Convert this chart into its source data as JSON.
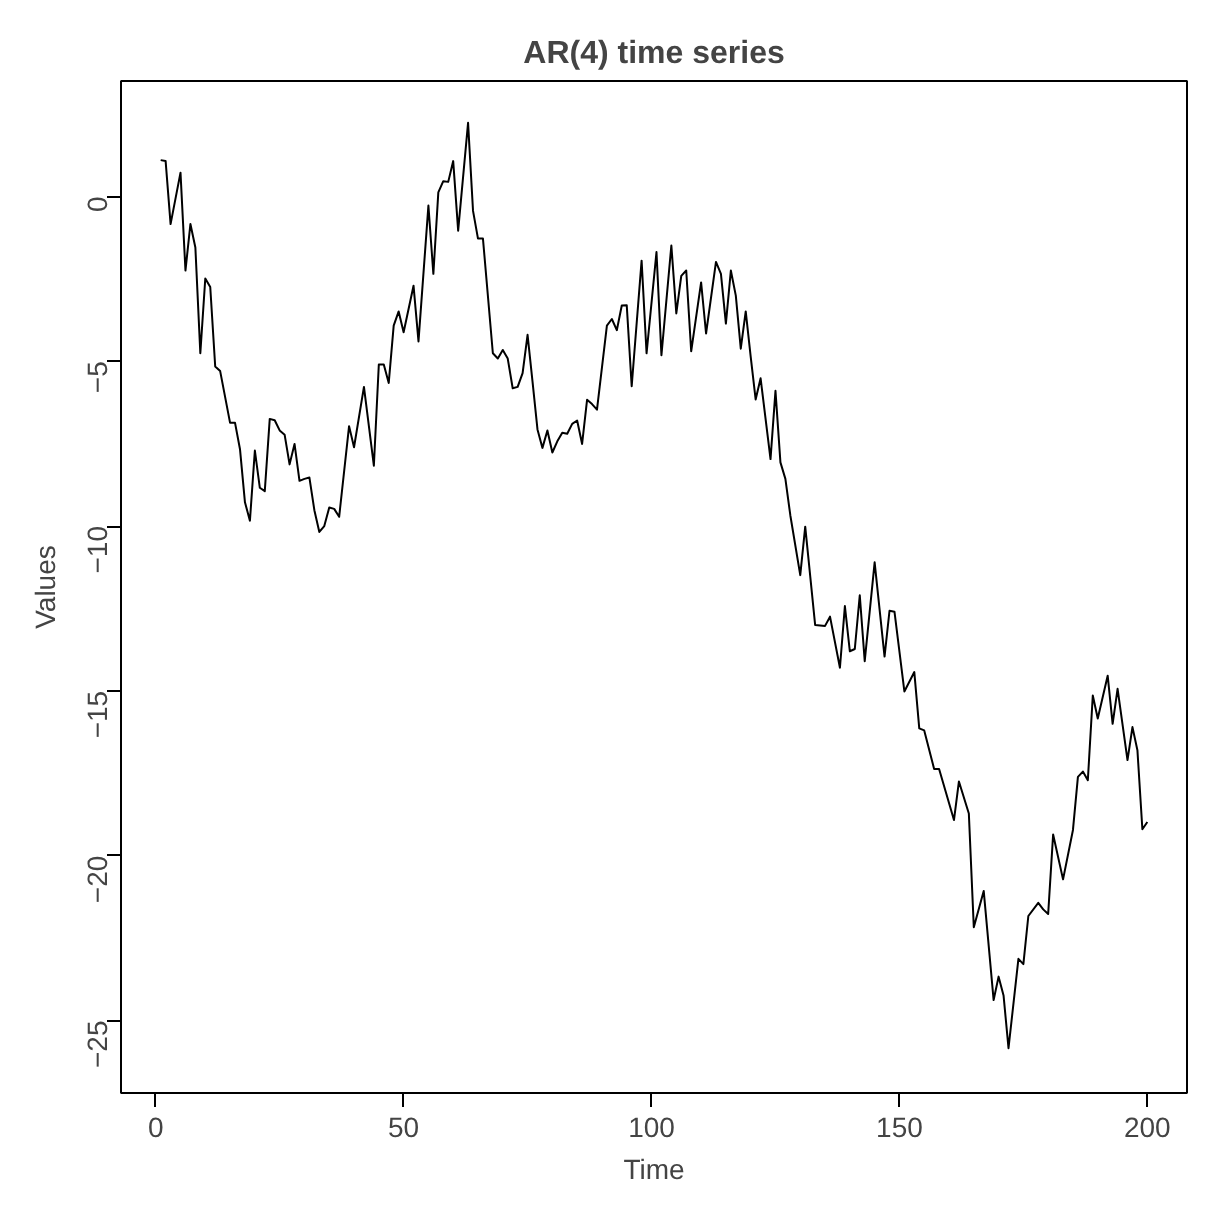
{
  "chart_data": {
    "type": "line",
    "title": "AR(4) time series",
    "xlabel": "Time",
    "ylabel": "Values",
    "x": [
      1,
      2,
      3,
      5,
      6,
      7,
      8,
      9,
      10,
      11,
      12,
      13,
      15,
      16,
      17,
      18,
      19,
      20,
      21,
      22,
      23,
      24,
      25,
      26,
      27,
      28,
      29,
      30,
      31,
      32,
      33,
      34,
      35,
      36,
      37,
      39,
      40,
      42,
      44,
      45,
      46,
      47,
      48,
      49,
      50,
      52,
      53,
      55,
      56,
      57,
      58,
      59,
      60,
      61,
      63,
      64,
      65,
      66,
      68,
      69,
      70,
      71,
      72,
      73,
      74,
      75,
      76,
      77,
      78,
      79,
      80,
      81,
      82,
      83,
      84,
      85,
      86,
      87,
      88,
      89,
      91,
      92,
      93,
      94,
      95,
      96,
      98,
      99,
      101,
      102,
      104,
      105,
      106,
      107,
      108,
      110,
      111,
      113,
      114,
      115,
      116,
      117,
      118,
      119,
      120,
      121,
      122,
      124,
      125,
      126,
      127,
      128,
      130,
      131,
      133,
      135,
      136,
      138,
      139,
      140,
      141,
      142,
      143,
      145,
      147,
      148,
      149,
      151,
      153,
      154,
      155,
      157,
      158,
      161,
      162,
      164,
      165,
      167,
      169,
      170,
      171,
      172,
      174,
      175,
      176,
      178,
      179,
      180,
      181,
      183,
      185,
      186,
      187,
      188,
      189,
      190,
      192,
      193,
      194,
      196,
      197,
      198,
      199,
      200
    ],
    "series": [
      {
        "color": "#000000",
        "values": [
          1.1,
          1.07,
          -0.84,
          0.72,
          -2.25,
          -0.84,
          -1.55,
          -4.76,
          -2.49,
          -2.75,
          -5.16,
          -5.3,
          -6.87,
          -6.87,
          -7.67,
          -9.28,
          -9.84,
          -7.71,
          -8.84,
          -8.94,
          -6.75,
          -6.79,
          -7.1,
          -7.23,
          -8.13,
          -7.51,
          -8.63,
          -8.57,
          -8.53,
          -9.52,
          -10.18,
          -10.0,
          -9.44,
          -9.48,
          -9.72,
          -6.97,
          -7.61,
          -5.78,
          -8.17,
          -5.1,
          -5.1,
          -5.66,
          -3.92,
          -3.49,
          -4.12,
          -2.71,
          -4.4,
          -0.28,
          -2.35,
          0.12,
          0.46,
          0.44,
          1.07,
          -1.04,
          2.23,
          -0.44,
          -1.28,
          -1.28,
          -4.76,
          -4.92,
          -4.66,
          -4.92,
          -5.82,
          -5.78,
          -5.36,
          -4.2,
          -5.62,
          -7.07,
          -7.63,
          -7.1,
          -7.77,
          -7.43,
          -7.17,
          -7.2,
          -6.9,
          -6.8,
          -7.51,
          -6.17,
          -6.3,
          -6.47,
          -3.92,
          -3.72,
          -4.06,
          -3.31,
          -3.3,
          -5.76,
          -1.95,
          -4.76,
          -1.69,
          -4.82,
          -1.49,
          -3.55,
          -2.41,
          -2.25,
          -4.7,
          -2.61,
          -4.16,
          -1.99,
          -2.35,
          -3.86,
          -2.25,
          -3.01,
          -4.62,
          -3.49,
          -4.86,
          -6.16,
          -5.52,
          -7.97,
          -5.9,
          -8.07,
          -8.57,
          -9.68,
          -11.49,
          -10.02,
          -13.0,
          -13.03,
          -12.75,
          -14.3,
          -12.43,
          -13.8,
          -13.73,
          -12.1,
          -14.1,
          -11.1,
          -13.96,
          -12.57,
          -12.6,
          -15.02,
          -14.43,
          -16.14,
          -16.2,
          -17.37,
          -17.37,
          -18.92,
          -17.75,
          -18.72,
          -22.17,
          -21.07,
          -24.38,
          -23.67,
          -24.24,
          -25.84,
          -23.13,
          -23.29,
          -21.83,
          -21.43,
          -21.63,
          -21.77,
          -19.36,
          -20.72,
          -19.22,
          -17.61,
          -17.45,
          -17.71,
          -15.14,
          -15.84,
          -14.54,
          -16.0,
          -14.94,
          -17.1,
          -16.1,
          -16.8,
          -19.2,
          -18.98
        ]
      }
    ],
    "xlim": [
      -7,
      208
    ],
    "ylim": [
      -27.2,
      3.5
    ],
    "xticks": [
      0,
      50,
      100,
      150,
      200
    ],
    "yticks": [
      0,
      -5,
      -10,
      -15,
      -20,
      -25
    ],
    "grid": false,
    "marker": "none",
    "line_style": "solid"
  }
}
